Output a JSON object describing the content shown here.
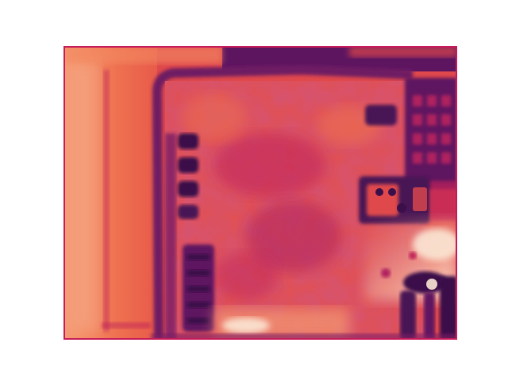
{
  "image": {
    "kind": "thermal-heatmap",
    "colormap": "rocket-like",
    "palette": {
      "darkest": "#3b0f4a",
      "dark": "#5e1560",
      "mid_dark": "#8a1f68",
      "mid": "#c0245a",
      "warm": "#e0494c",
      "hot": "#ee6f4f",
      "hotter": "#f49a72",
      "brightest": "#fbe6d4",
      "border": "#c51b5a",
      "background": "#ffffff"
    },
    "axes_visible": false,
    "description_elements": [
      "left-strip",
      "main-board",
      "top-dark-band",
      "left-connector-pins",
      "right-grid",
      "right-component",
      "bottom-right-hotspot"
    ]
  }
}
